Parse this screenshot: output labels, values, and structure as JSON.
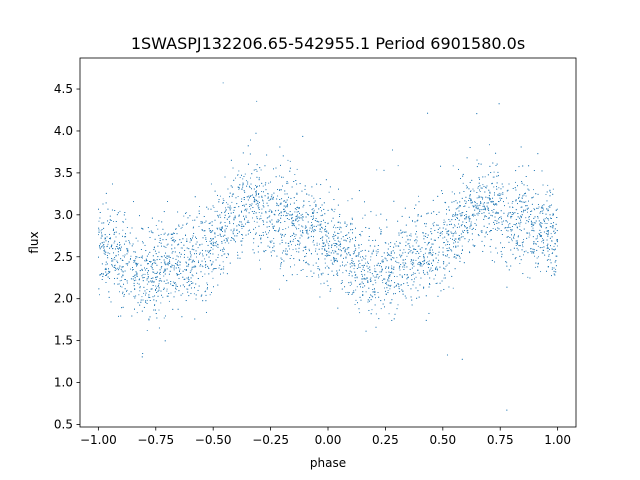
{
  "chart_data": {
    "type": "scatter",
    "title": "1SWASPJ132206.65-542955.1 Period 6901580.0s",
    "xlabel": "phase",
    "ylabel": "flux",
    "xlim": [
      -1.08,
      1.08
    ],
    "ylim": [
      0.47,
      4.87
    ],
    "xticks": [
      -1.0,
      -0.75,
      -0.5,
      -0.25,
      0.0,
      0.25,
      0.5,
      0.75,
      1.0
    ],
    "xtick_labels": [
      "−1.00",
      "−0.75",
      "−0.50",
      "−0.25",
      "0.00",
      "0.25",
      "0.50",
      "0.75",
      "1.00"
    ],
    "yticks": [
      0.5,
      1.0,
      1.5,
      2.0,
      2.5,
      3.0,
      3.5,
      4.0,
      4.5
    ],
    "ytick_labels": [
      "0.5",
      "1.0",
      "1.5",
      "2.0",
      "2.5",
      "3.0",
      "3.5",
      "4.0",
      "4.5"
    ],
    "grid": false,
    "marker_color": "#1f77b4",
    "series": [
      {
        "x": [
          -1.0,
          -0.95,
          -0.9,
          -0.85,
          -0.8,
          -0.75,
          -0.7,
          -0.65,
          -0.6,
          -0.55,
          -0.5,
          -0.45,
          -0.4,
          -0.35,
          -0.3,
          -0.25,
          -0.2,
          -0.15,
          -0.1,
          -0.05,
          0.0,
          0.05,
          0.1,
          0.15,
          0.2,
          0.25,
          0.3,
          0.35,
          0.4,
          0.45,
          0.5,
          0.55,
          0.6,
          0.65,
          0.7,
          0.75,
          0.8,
          0.85,
          0.9,
          0.95,
          1.0
        ],
        "y": [
          2.65,
          2.6,
          2.45,
          2.35,
          2.3,
          2.35,
          2.4,
          2.45,
          2.5,
          2.55,
          2.65,
          2.8,
          3.0,
          3.15,
          3.1,
          3.0,
          2.95,
          2.9,
          2.85,
          2.8,
          2.7,
          2.55,
          2.45,
          2.35,
          2.3,
          2.35,
          2.4,
          2.45,
          2.5,
          2.55,
          2.65,
          2.8,
          3.0,
          3.15,
          3.1,
          3.0,
          2.95,
          2.9,
          2.85,
          2.8,
          2.65
        ]
      }
    ]
  }
}
